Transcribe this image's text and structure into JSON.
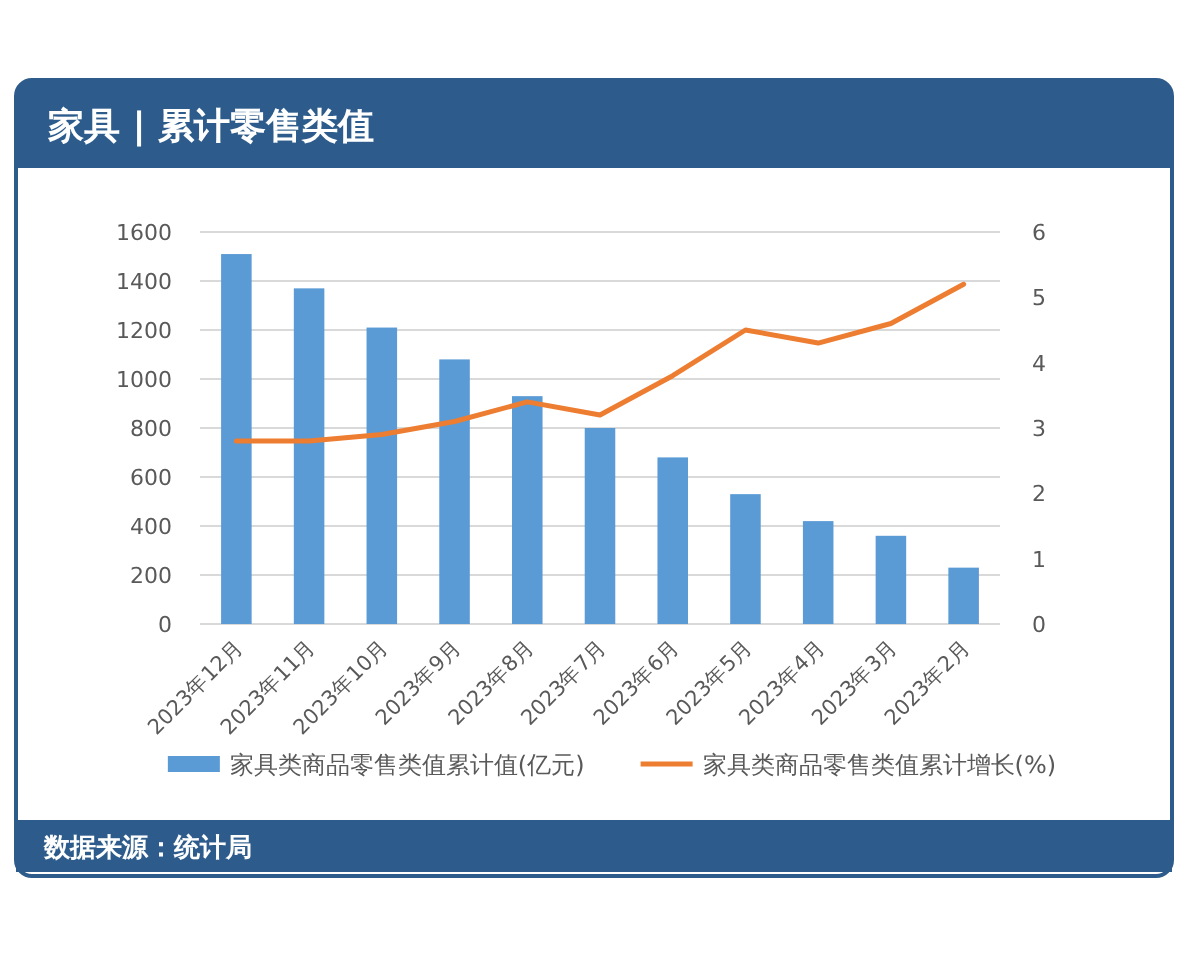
{
  "chart_data": {
    "type": "bar",
    "title": "家具 | 累计零售类值",
    "categories": [
      "2023年12月",
      "2023年11月",
      "2023年10月",
      "2023年9月",
      "2023年8月",
      "2023年7月",
      "2023年6月",
      "2023年5月",
      "2023年4月",
      "2023年3月",
      "2023年2月"
    ],
    "series": [
      {
        "name": "家具类商品零售类值累计值(亿元)",
        "color": "#5b9bd5",
        "values": [
          1510,
          1370,
          1210,
          1080,
          930,
          800,
          680,
          530,
          420,
          360,
          230
        ]
      },
      {
        "name": "家具类商品零售类值累计增长(%)",
        "type": "line",
        "axis": "y2",
        "color": "#ed7d31",
        "values": [
          2.8,
          2.8,
          2.9,
          3.1,
          3.4,
          3.2,
          3.8,
          4.5,
          4.3,
          4.6,
          5.2
        ]
      }
    ],
    "ylim": [
      0,
      1600
    ],
    "yticks": [
      0,
      200,
      400,
      600,
      800,
      1000,
      1200,
      1400,
      1600
    ],
    "y2lim": [
      0,
      6
    ],
    "y2ticks": [
      0,
      1,
      2,
      3,
      4,
      5,
      6
    ],
    "grid": "y",
    "legend": "bottom",
    "annotations": [
      "数据来源：统计局"
    ]
  }
}
